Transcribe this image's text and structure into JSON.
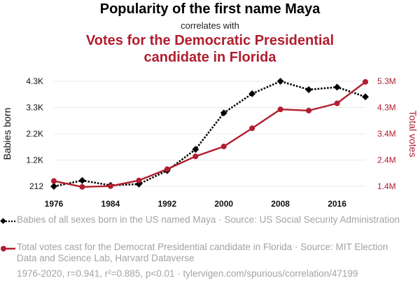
{
  "title_primary": "Popularity of the first name Maya",
  "subtitle": "correlates with",
  "title_secondary_line1": "Votes for the Democratic Presidential",
  "title_secondary_line2": "candidate in Florida",
  "colors": {
    "series1": "#000000",
    "series2": "#b01e2f",
    "grid": "#e8e8e8",
    "footer_text": "#a3a3a3"
  },
  "chart_data": {
    "type": "line",
    "x_ticks": [
      "1976",
      "1984",
      "1992",
      "2000",
      "2008",
      "2016"
    ],
    "xlim": [
      1976,
      2020
    ],
    "y_left_label": "Babies born",
    "y_left_ticks": [
      "212",
      "1.2K",
      "2.2K",
      "3.3K",
      "4.3K"
    ],
    "y_left_tick_values": [
      212,
      1240,
      2270,
      3300,
      4330
    ],
    "ylim_left": [
      212,
      4330
    ],
    "y_right_label": "Total votes",
    "y_right_ticks": [
      "1.4M",
      "2.4M",
      "3.4M",
      "4.3M",
      "5.3M"
    ],
    "y_right_tick_values": [
      1440000,
      2410000,
      3380000,
      4350000,
      5320000
    ],
    "ylim_right": [
      1440000,
      5320000
    ],
    "grid": true,
    "series": [
      {
        "name": "Babies of all sexes born in the US named Maya · Source: US Social Security Administration",
        "axis": "left",
        "style": "dotted",
        "marker": "diamond",
        "color": "#000000",
        "x": [
          1976,
          1980,
          1984,
          1988,
          1992,
          1996,
          2000,
          2004,
          2008,
          2012,
          2016,
          2020
        ],
        "y": [
          212,
          440,
          250,
          300,
          830,
          1660,
          3090,
          3840,
          4330,
          4000,
          4100,
          3720
        ]
      },
      {
        "name": "Total votes cast for the Democrat Presidential candidate in Florida · Source: MIT Election Data and Science Lab, Harvard Dataverse",
        "axis": "right",
        "style": "solid",
        "marker": "circle",
        "color": "#b01e2f",
        "x": [
          1976,
          1980,
          1984,
          1988,
          1992,
          1996,
          2000,
          2004,
          2008,
          2012,
          2016,
          2020
        ],
        "y": [
          1636000,
          1419000,
          1448000,
          1656000,
          2073000,
          2546000,
          2912000,
          3584000,
          4282000,
          4237000,
          4505000,
          5297000
        ]
      }
    ]
  },
  "legend": {
    "entry1": "Babies of all sexes born in the US named Maya · Source: US Social Security Administration",
    "entry2": "Total votes cast for the Democrat Presidential candidate in Florida · Source: MIT Election Data and Science Lab, Harvard Dataverse"
  },
  "footer": "1976-2020, r=0.941, r²=0.885, p<0.01 · tylervigen.com/spurious/correlation/47199"
}
